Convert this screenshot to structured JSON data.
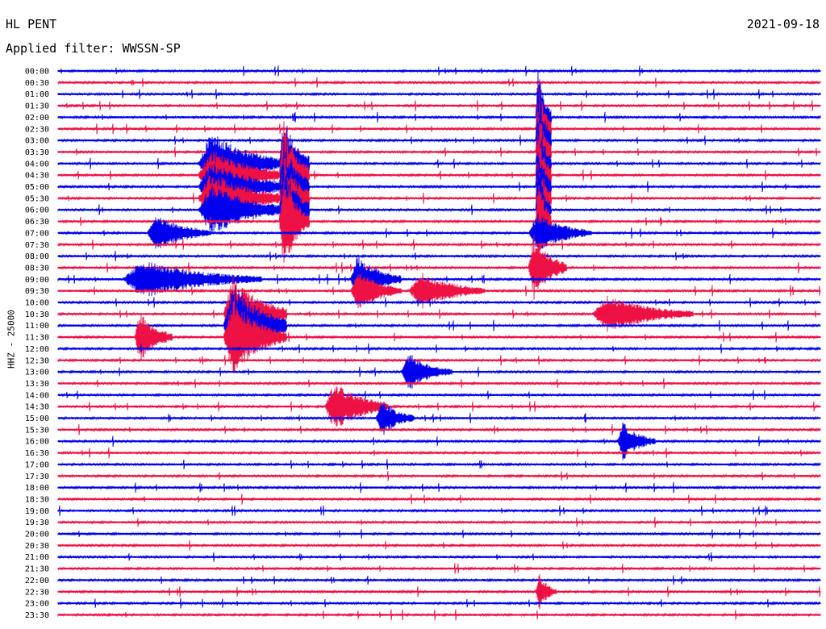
{
  "header": {
    "station": "HL PENT",
    "date": "2021-09-18",
    "filter": "Applied filter: WWSSN-SP"
  },
  "chart_data": {
    "type": "line",
    "title": "HL PENT",
    "date": "2021-09-18",
    "filter": "WWSSN-SP",
    "ylabel": "HHZ - 25000",
    "row_labels": [
      "00:00",
      "00:30",
      "01:00",
      "01:30",
      "02:00",
      "02:30",
      "03:00",
      "03:30",
      "04:00",
      "04:30",
      "05:00",
      "05:30",
      "06:00",
      "06:30",
      "07:00",
      "07:30",
      "08:00",
      "08:30",
      "09:00",
      "09:30",
      "10:00",
      "10:30",
      "11:00",
      "11:30",
      "12:00",
      "12:30",
      "13:00",
      "13:30",
      "14:00",
      "14:30",
      "15:00",
      "15:30",
      "16:00",
      "16:30",
      "17:00",
      "17:30",
      "18:00",
      "18:30",
      "19:00",
      "19:30",
      "20:00",
      "20:30",
      "21:00",
      "21:30",
      "22:00",
      "22:30",
      "23:00",
      "23:30"
    ],
    "x_unit": "minutes within each 30-minute row",
    "x_range": [
      0,
      30
    ],
    "colors": {
      "even_rows": "#0000ee",
      "odd_rows": "#ee1144"
    },
    "events": [
      {
        "start": "04:00",
        "rows": [
          "04:00",
          "04:30",
          "05:00",
          "05:30",
          "06:00"
        ],
        "minute": 5.5,
        "duration_min": 3.5,
        "level": 5,
        "color": "red"
      },
      {
        "start": "04:30",
        "rows": [
          "04:00",
          "04:30",
          "05:00",
          "05:30",
          "06:00",
          "06:30"
        ],
        "minute": 8.7,
        "duration_min": 1.2,
        "level": 9,
        "color": "red"
      },
      {
        "start": "03:00",
        "rows": [
          "02:00",
          "02:30",
          "03:00",
          "03:30",
          "04:00",
          "04:30",
          "05:00",
          "05:30",
          "06:00",
          "06:30"
        ],
        "minute": 18.8,
        "duration_min": 0.6,
        "level": 9,
        "color": "blue"
      },
      {
        "start": "07:00",
        "rows": [
          "07:00"
        ],
        "minute": 3.5,
        "duration_min": 2.5,
        "level": 3,
        "color": "blue"
      },
      {
        "start": "07:00",
        "rows": [
          "07:00"
        ],
        "minute": 18.5,
        "duration_min": 2.5,
        "level": 3,
        "color": "blue"
      },
      {
        "start": "08:30",
        "rows": [
          "08:30"
        ],
        "minute": 18.5,
        "duration_min": 1.5,
        "level": 5,
        "color": "red"
      },
      {
        "start": "09:00",
        "rows": [
          "09:00"
        ],
        "minute": 2.5,
        "duration_min": 5.5,
        "level": 3,
        "color": "blue"
      },
      {
        "start": "09:00",
        "rows": [
          "09:00",
          "09:30"
        ],
        "minute": 11.5,
        "duration_min": 2,
        "level": 4,
        "color": "blue"
      },
      {
        "start": "09:30",
        "rows": [
          "09:30"
        ],
        "minute": 13.8,
        "duration_min": 3,
        "level": 3,
        "color": "red"
      },
      {
        "start": "10:30",
        "rows": [
          "10:30"
        ],
        "minute": 21.0,
        "duration_min": 4,
        "level": 3,
        "color": "red"
      },
      {
        "start": "11:00",
        "rows": [
          "10:30",
          "11:00",
          "11:30"
        ],
        "minute": 6.5,
        "duration_min": 2.5,
        "level": 7,
        "color": "blue"
      },
      {
        "start": "11:30",
        "rows": [
          "11:30"
        ],
        "minute": 3.0,
        "duration_min": 1.5,
        "level": 4,
        "color": "red"
      },
      {
        "start": "13:00",
        "rows": [
          "13:00"
        ],
        "minute": 13.5,
        "duration_min": 2,
        "level": 3,
        "color": "blue"
      },
      {
        "start": "14:30",
        "rows": [
          "14:30"
        ],
        "minute": 10.5,
        "duration_min": 2.5,
        "level": 4,
        "color": "red"
      },
      {
        "start": "15:00",
        "rows": [
          "15:00"
        ],
        "minute": 12.5,
        "duration_min": 1.5,
        "level": 3,
        "color": "blue"
      },
      {
        "start": "16:00",
        "rows": [
          "16:00"
        ],
        "minute": 22.0,
        "duration_min": 1.5,
        "level": 3,
        "color": "blue"
      },
      {
        "start": "22:30",
        "rows": [
          "22:30"
        ],
        "minute": 18.8,
        "duration_min": 0.8,
        "level": 3,
        "color": "red"
      }
    ]
  }
}
